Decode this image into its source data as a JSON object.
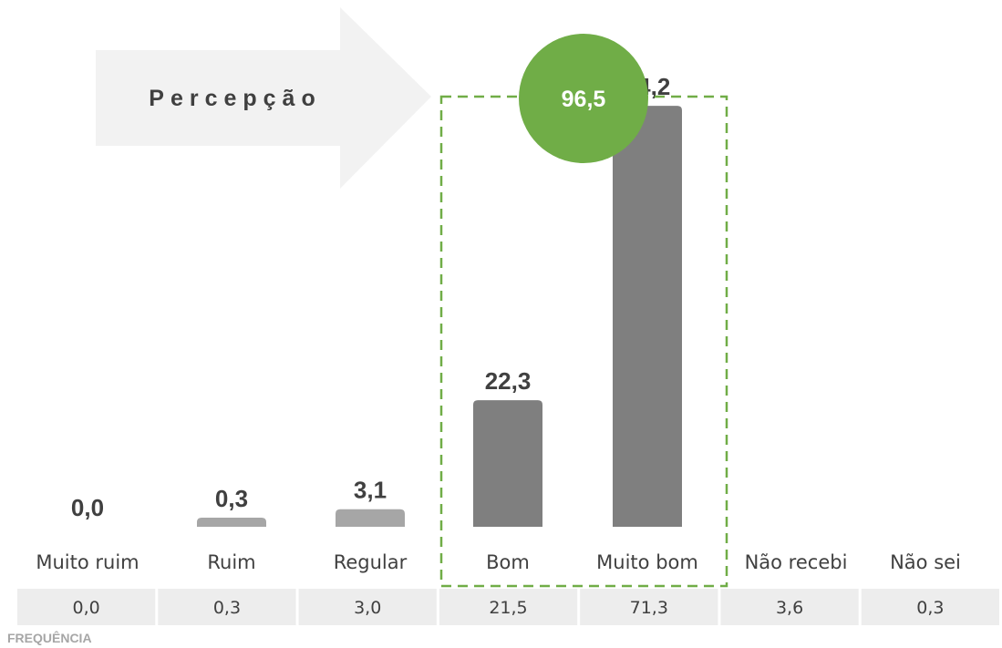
{
  "chart_data": {
    "type": "bar",
    "categories": [
      "Muito ruim",
      "Ruim",
      "Regular",
      "Bom",
      "Muito bom",
      "Não recebi",
      "Não sei"
    ],
    "values": [
      0.0,
      0.3,
      3.1,
      22.3,
      74.2,
      null,
      null
    ],
    "value_labels": [
      "0,0",
      "0,3",
      "3,1",
      "22,3",
      "74,2",
      "",
      ""
    ],
    "ylim": [
      0,
      80
    ],
    "grid": false,
    "legend": "none",
    "bar_colors": [
      "#bfbfbf",
      "#a6a6a6",
      "#a6a6a6",
      "#7f7f7f",
      "#7f7f7f",
      "#7f7f7f",
      "#7f7f7f"
    ],
    "frequency": {
      "title": "FREQUÊNCIA",
      "values": [
        0.0,
        0.3,
        3.0,
        21.5,
        71.3,
        3.6,
        0.3
      ],
      "labels": [
        "0,0",
        "0,3",
        "3,0",
        "21,5",
        "71,3",
        "3,6",
        "0,3"
      ]
    },
    "annotations": {
      "arrow_text": "Percepção",
      "highlight_value": 96.5,
      "highlight_label": "96,5",
      "highlight_categories": [
        "Bom",
        "Muito bom"
      ]
    }
  },
  "colors": {
    "arrow": "#f2f2f2",
    "circle": "#70ad47",
    "highlight_border": "#70ad47",
    "cell": "#ededed",
    "text": "#404040"
  }
}
